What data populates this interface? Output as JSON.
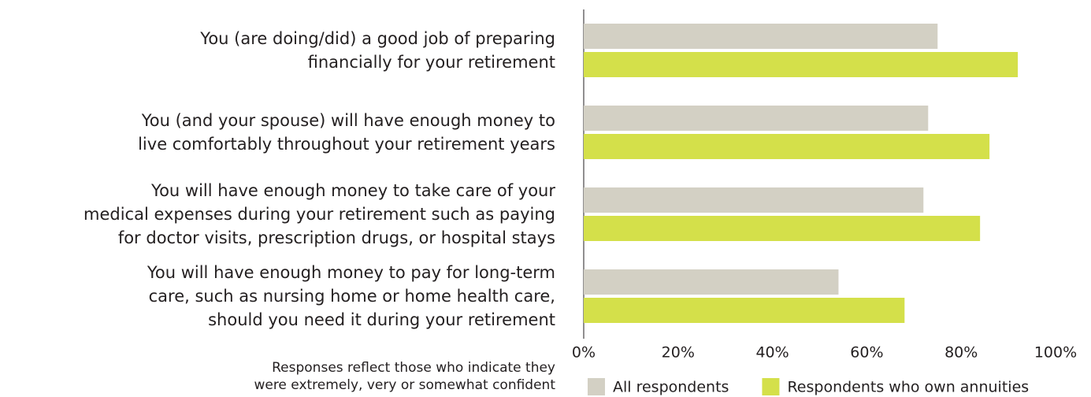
{
  "chart_data": {
    "type": "hbar",
    "categories": [
      "You (are doing/did) a good job of preparing\nfinancially for your retirement",
      "You (and your spouse) will have enough money to\nlive comfortably throughout your retirement years",
      "You will have enough money to take care of your\nmedical expenses during your retirement such as paying\nfor doctor visits, prescription drugs, or hospital stays",
      "You will have enough money to pay for long-term\ncare, such as nursing home or home health care,\nshould you need it during your retirement"
    ],
    "series": [
      {
        "name": "All respondents",
        "color": "#d3d0c4",
        "values": [
          75,
          73,
          72,
          54
        ]
      },
      {
        "name": "Respondents who own annuities",
        "color": "#d4e04a",
        "values": [
          92,
          86,
          84,
          68
        ]
      }
    ],
    "xlim": [
      0,
      100
    ],
    "xticks": [
      {
        "value": 0,
        "label": "0%"
      },
      {
        "value": 20,
        "label": "20%"
      },
      {
        "value": 40,
        "label": "40%"
      },
      {
        "value": 60,
        "label": "60%"
      },
      {
        "value": 80,
        "label": "80%"
      },
      {
        "value": 100,
        "label": "100%"
      }
    ],
    "annotation": "Responses reflect those who indicate they\nwere extremely, very or somewhat confident",
    "legend": "bottom"
  }
}
